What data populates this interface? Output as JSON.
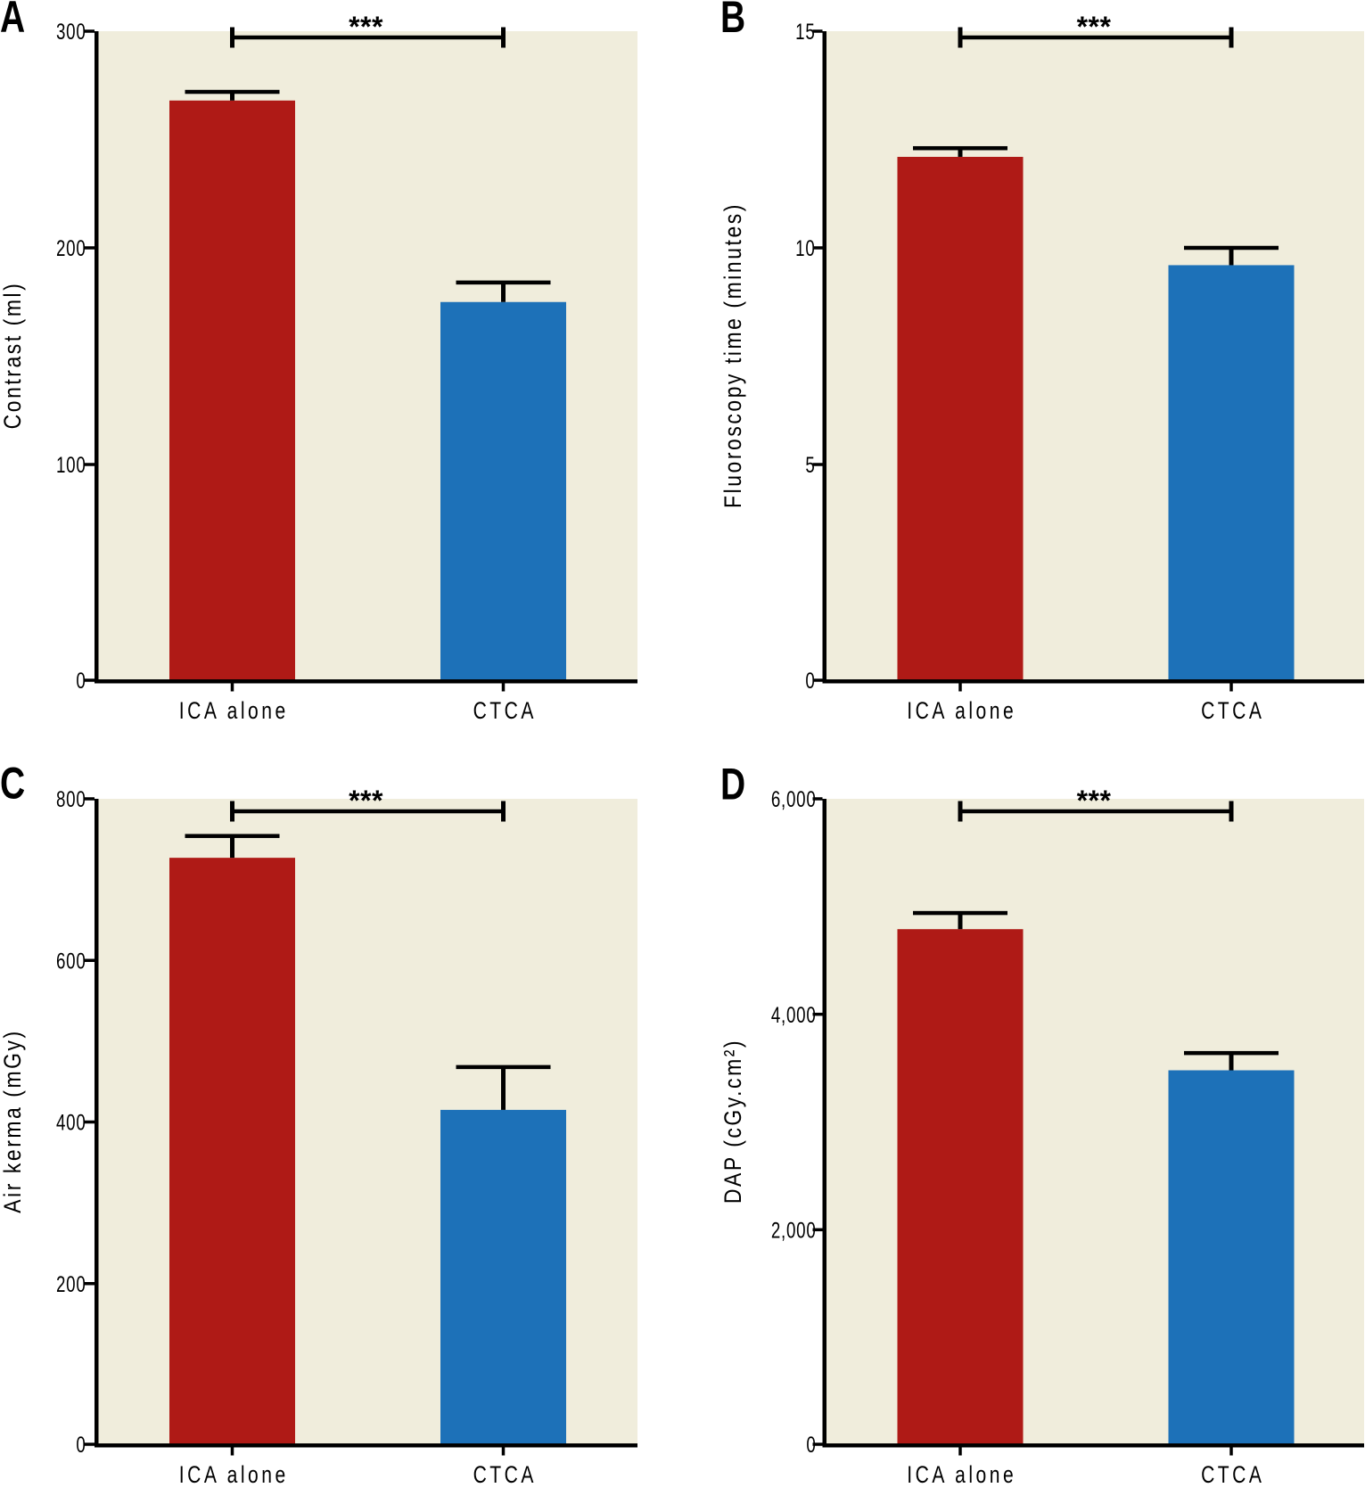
{
  "figure": {
    "description": "Four-panel bar chart figure comparing ICA alone vs CTCA groups",
    "background_color": "#ffffff",
    "plot_background_color": "#f0eddc",
    "axis_color": "#000000",
    "bar_color_ica_alone": "#af1a16",
    "bar_color_ctca": "#1d71b8",
    "error_bar_color": "#000000",
    "significance_color": "#000000"
  },
  "chart_data": [
    {
      "panel": "A",
      "type": "bar",
      "ylabel": "Contrast (ml)",
      "xlabel": "",
      "ylim": [
        0,
        300
      ],
      "ytick_values": [
        0,
        100,
        200,
        300
      ],
      "ytick_labels": [
        "0",
        "100",
        "200",
        "300"
      ],
      "categories": [
        "ICA alone",
        "CTCA"
      ],
      "values": [
        268,
        175
      ],
      "errors_plus": [
        4,
        9
      ],
      "bar_colors": [
        "#af1a16",
        "#1d71b8"
      ],
      "significance": "***",
      "legend": "none",
      "grid": "off"
    },
    {
      "panel": "B",
      "type": "bar",
      "ylabel": "Fluoroscopy time (minutes)",
      "xlabel": "",
      "ylim": [
        0,
        15
      ],
      "ytick_values": [
        0,
        5,
        10,
        15
      ],
      "ytick_labels": [
        "0",
        "5",
        "10",
        "15"
      ],
      "categories": [
        "ICA alone",
        "CTCA"
      ],
      "values": [
        12.1,
        9.6
      ],
      "errors_plus": [
        0.2,
        0.4
      ],
      "bar_colors": [
        "#af1a16",
        "#1d71b8"
      ],
      "significance": "***",
      "legend": "none",
      "grid": "off"
    },
    {
      "panel": "C",
      "type": "bar",
      "ylabel": "Air kerma (mGy)",
      "xlabel": "",
      "ylim": [
        0,
        800
      ],
      "ytick_values": [
        0,
        200,
        400,
        600,
        800
      ],
      "ytick_labels": [
        "0",
        "200",
        "400",
        "600",
        "800"
      ],
      "categories": [
        "ICA alone",
        "CTCA"
      ],
      "values": [
        727,
        415
      ],
      "errors_plus": [
        27,
        53
      ],
      "bar_colors": [
        "#af1a16",
        "#1d71b8"
      ],
      "significance": "***",
      "legend": "none",
      "grid": "off"
    },
    {
      "panel": "D",
      "type": "bar",
      "ylabel": "DAP (cGy.cm²)",
      "xlabel": "",
      "ylim": [
        0,
        6000
      ],
      "ytick_values": [
        0,
        2000,
        4000,
        6000
      ],
      "ytick_labels": [
        "0",
        "2,000",
        "4,000",
        "6,000"
      ],
      "categories": [
        "ICA alone",
        "CTCA"
      ],
      "values": [
        4790,
        3480
      ],
      "errors_plus": [
        150,
        160
      ],
      "bar_colors": [
        "#af1a16",
        "#1d71b8"
      ],
      "significance": "***",
      "legend": "none",
      "grid": "off"
    }
  ]
}
